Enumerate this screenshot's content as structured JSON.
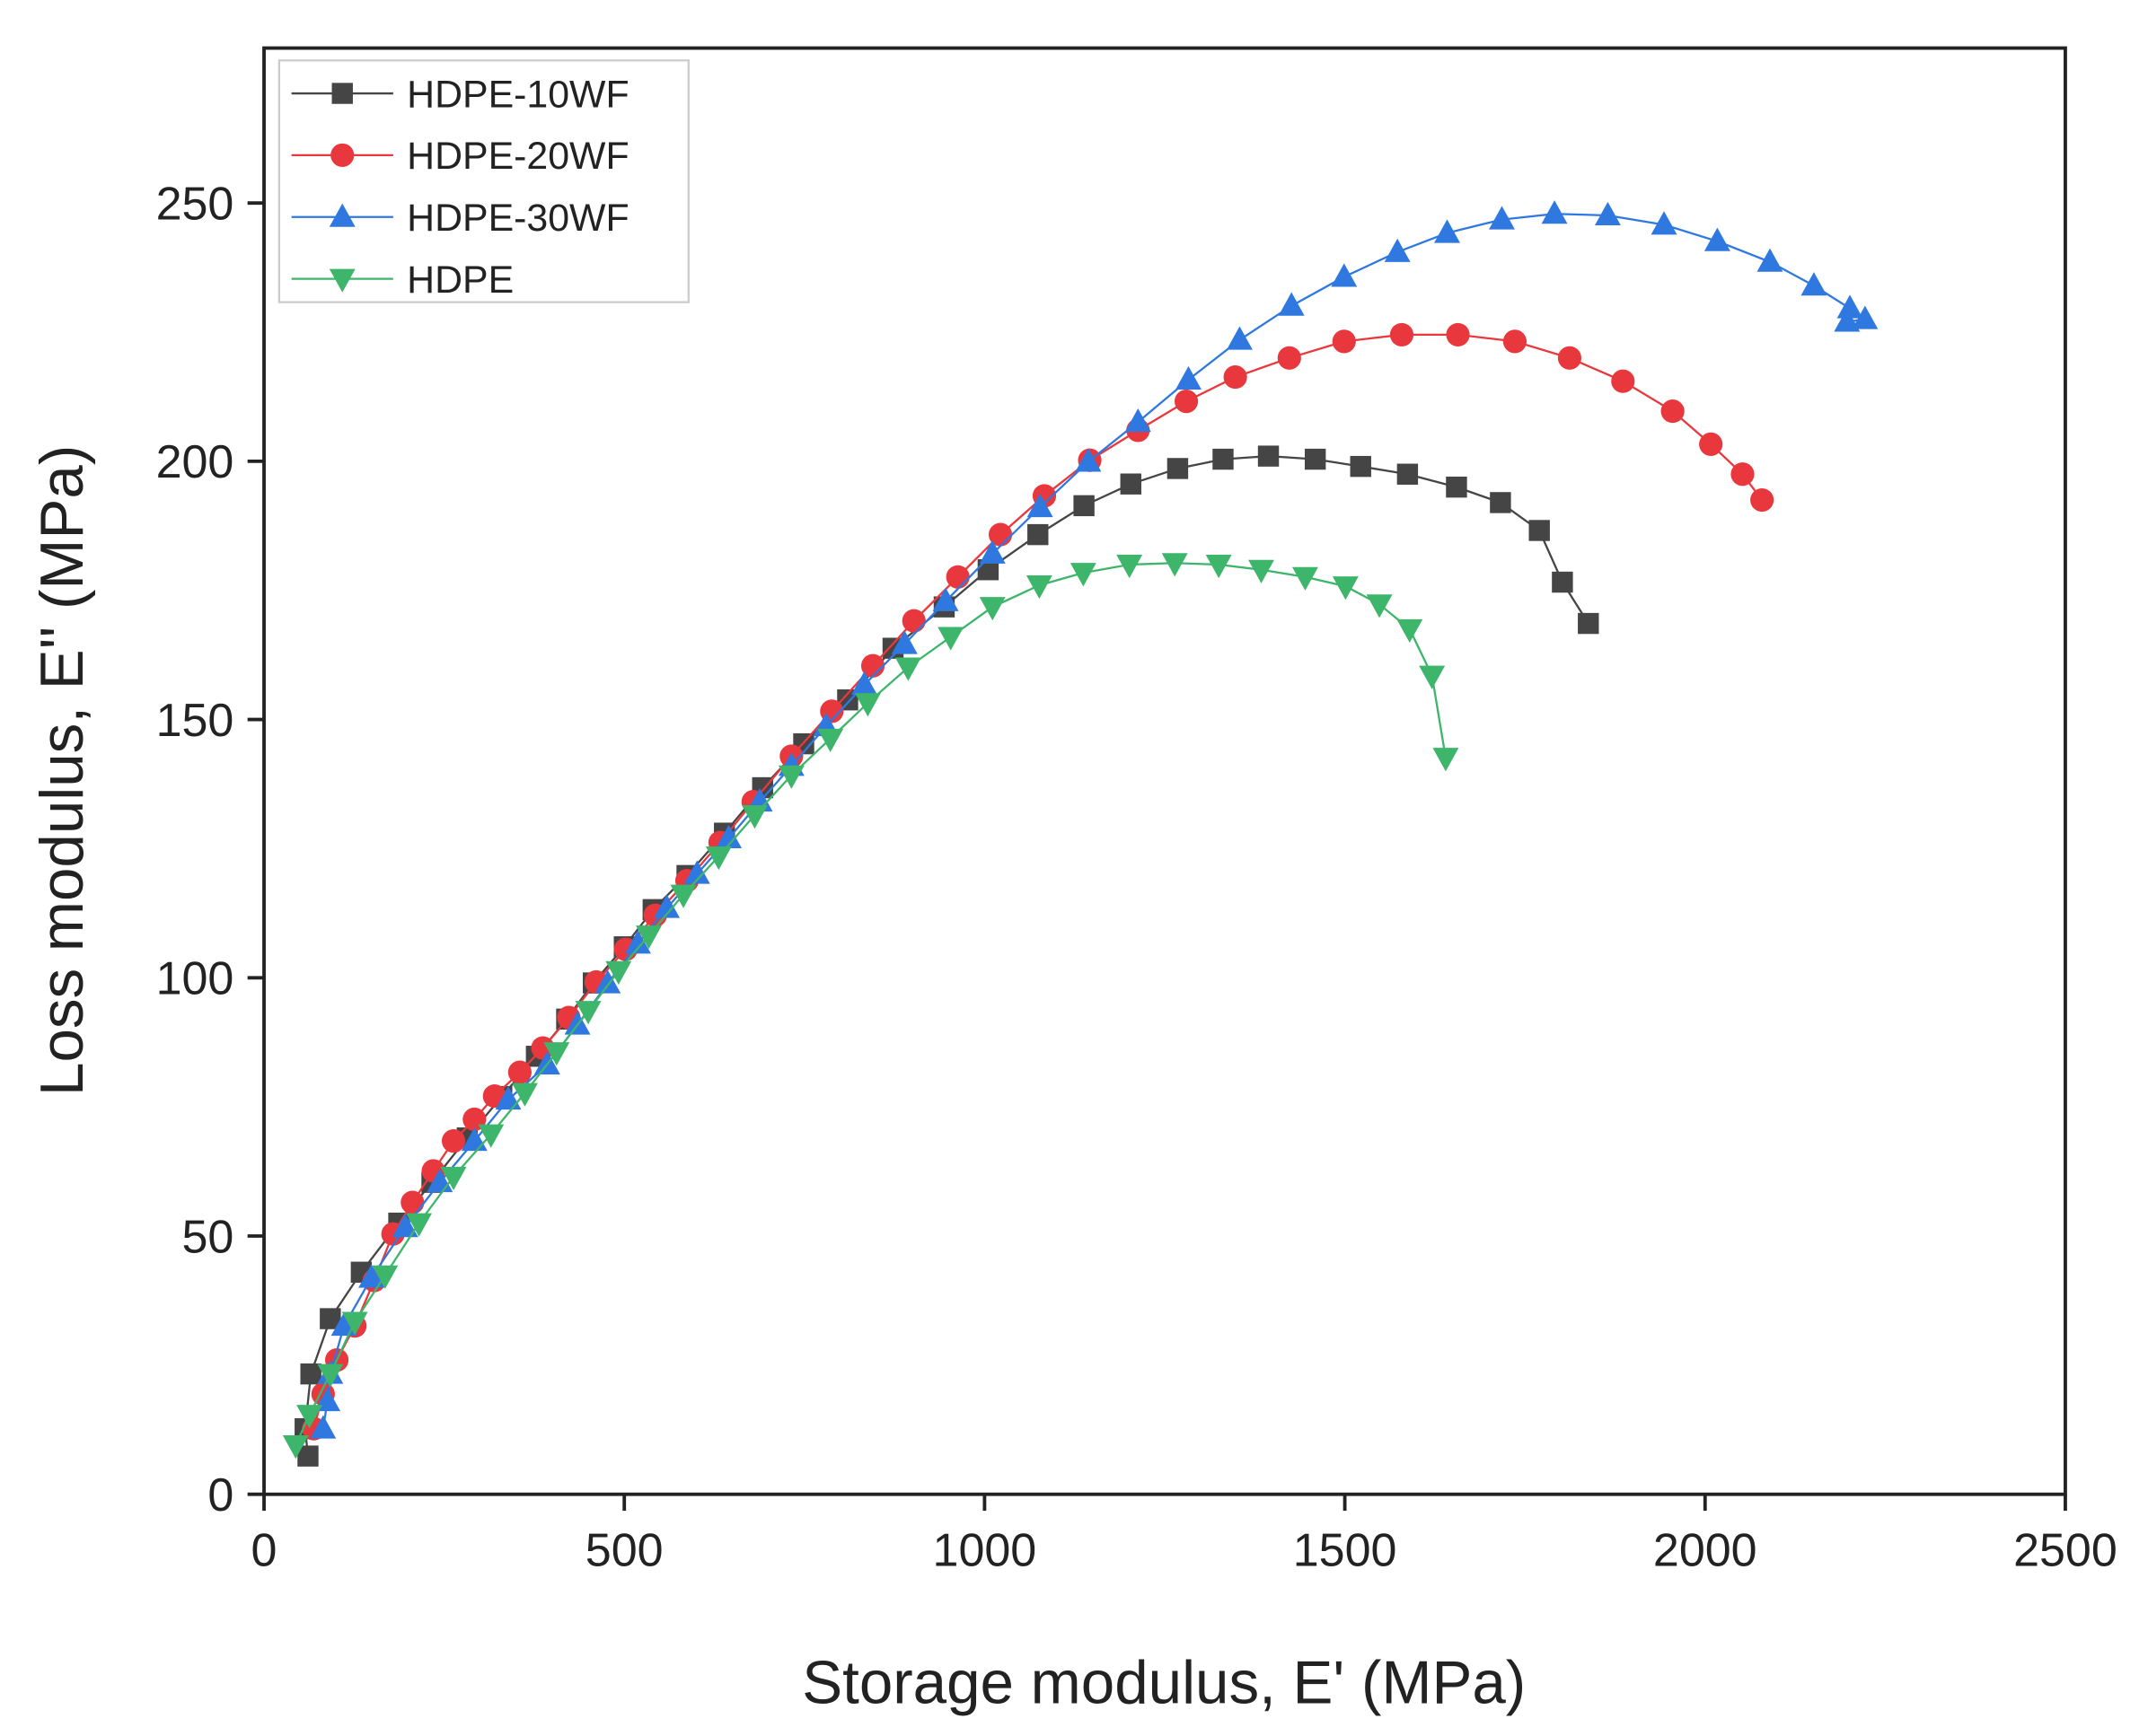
{
  "chart_data": {
    "type": "scatter",
    "xlabel": "Storage modulus, E' (MPa)",
    "ylabel": "Loss modulus, E'' (MPa)",
    "xlim": [
      0,
      2500
    ],
    "xticks": [
      0,
      500,
      1000,
      1500,
      2000,
      2500
    ],
    "ylim": [
      0,
      280
    ],
    "yticks": [
      0,
      50,
      100,
      150,
      200,
      250
    ],
    "legend": "upper left",
    "series": [
      {
        "name": "HDPE-10WF",
        "color": "#454545",
        "marker": "square",
        "x": [
          61,
          57,
          65,
          92,
          135,
          187,
          233,
          282,
          330,
          378,
          420,
          457,
          500,
          540,
          587,
          639,
          692,
          749,
          810,
          873,
          944,
          1005,
          1074,
          1138,
          1203,
          1268,
          1331,
          1394,
          1459,
          1522,
          1587,
          1655,
          1716,
          1770,
          1802,
          1838
        ],
        "y": [
          7.4,
          12.7,
          23.3,
          34,
          43,
          52.5,
          60.4,
          69,
          77,
          84.8,
          92,
          99,
          106,
          113.2,
          119.8,
          128,
          136.8,
          145.3,
          153.8,
          163.8,
          171.8,
          179,
          185.8,
          191.4,
          195.6,
          198.6,
          200.4,
          201,
          200.4,
          199,
          197.5,
          195,
          192,
          186.6,
          176.6,
          168.6
        ]
      },
      {
        "name": "HDPE-20WF",
        "color": "#e8383d",
        "marker": "circle",
        "x": [
          69,
          82,
          101,
          126,
          153,
          179,
          206,
          235,
          263,
          292,
          320,
          355,
          387,
          423,
          461,
          502,
          543,
          587,
          633,
          679,
          732,
          788,
          845,
          902,
          963,
          1022,
          1083,
          1146,
          1213,
          1280,
          1348,
          1423,
          1499,
          1579,
          1657,
          1736,
          1812,
          1886,
          1955,
          2008,
          2052,
          2079
        ],
        "y": [
          12.7,
          19.4,
          26,
          32.6,
          41.4,
          50.4,
          56.5,
          62.6,
          68.4,
          72.6,
          77.1,
          81.7,
          86.4,
          92.3,
          99.2,
          105.5,
          112.1,
          118.8,
          126.2,
          134.1,
          142.9,
          151.6,
          160.4,
          169.1,
          177.6,
          185.8,
          193.3,
          200.2,
          206,
          211.6,
          216.3,
          220,
          223.2,
          224.5,
          224.5,
          223.2,
          220,
          215.5,
          209.7,
          203.3,
          197.5,
          192.5
        ]
      },
      {
        "name": "HDPE-30WF",
        "color": "#2f78e0",
        "marker": "triangle-up",
        "x": [
          82,
          88,
          92,
          111,
          149,
          196,
          244,
          292,
          339,
          393,
          435,
          477,
          519,
          559,
          601,
          645,
          688,
          732,
          780,
          833,
          889,
          946,
          1011,
          1077,
          1144,
          1213,
          1283,
          1354,
          1426,
          1499,
          1573,
          1642,
          1718,
          1791,
          1865,
          1943,
          2017,
          2090,
          2151,
          2201,
          2197,
          2222
        ],
        "y": [
          12.7,
          18,
          23.3,
          32.6,
          41.9,
          51.7,
          60.4,
          68.4,
          76.4,
          83.2,
          90.9,
          98.9,
          106.6,
          113.5,
          120.1,
          127,
          134.1,
          141,
          148.7,
          156.7,
          164.6,
          172.9,
          182.1,
          191.1,
          199.9,
          207.6,
          215.8,
          223.5,
          230.1,
          235.7,
          240.5,
          244.2,
          246.8,
          247.9,
          247.6,
          245.8,
          242.6,
          238.6,
          234,
          229.6,
          227,
          227.5
        ]
      },
      {
        "name": "HDPE",
        "color": "#3db56a",
        "marker": "triangle-down",
        "x": [
          44,
          63,
          92,
          126,
          168,
          215,
          263,
          315,
          362,
          406,
          450,
          492,
          534,
          582,
          631,
          681,
          732,
          786,
          838,
          894,
          953,
          1011,
          1076,
          1137,
          1201,
          1264,
          1325,
          1384,
          1445,
          1501,
          1548,
          1590,
          1621,
          1640
        ],
        "y": [
          9.5,
          15.4,
          23.3,
          33.4,
          42.4,
          52.5,
          61.5,
          69.7,
          77.7,
          85.6,
          93.6,
          101.3,
          108.2,
          116.1,
          123.5,
          131.5,
          139.2,
          146.3,
          153.2,
          160.1,
          166,
          171.8,
          176,
          178.4,
          180,
          180.3,
          180,
          179,
          177.6,
          175.8,
          172.3,
          167.5,
          158.5,
          142.6
        ]
      }
    ]
  }
}
